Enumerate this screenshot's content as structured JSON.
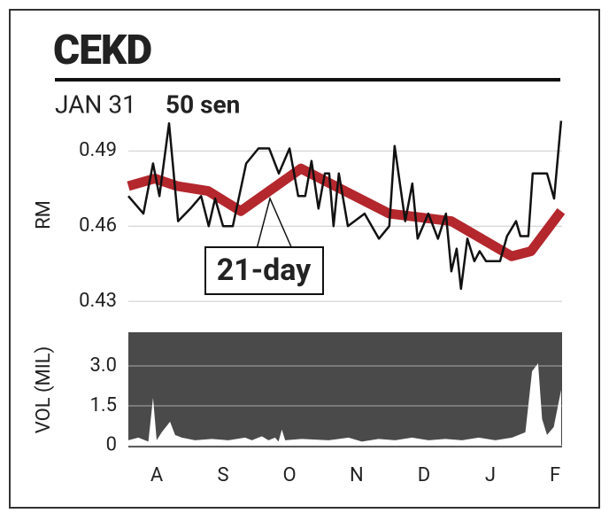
{
  "title": "CEKD",
  "date": "JAN 31",
  "price": "50 sen",
  "chart_data": [
    {
      "type": "line",
      "ylabel": "RM",
      "annotation": "21-day",
      "xlim": [
        0,
        130
      ],
      "ylim": [
        0.4265,
        0.5025
      ],
      "yticks": [
        0.43,
        0.46,
        0.49
      ],
      "grid": true,
      "series": [
        {
          "name": "21-day",
          "color": "#b3272d",
          "x": [
            0,
            7.9,
            14.6,
            23.9,
            33.7,
            51.7,
            78.2,
            96.8,
            114.9,
            120.7,
            129.7
          ],
          "values": [
            0.476,
            0.479,
            0.476,
            0.474,
            0.466,
            0.483,
            0.465,
            0.462,
            0.448,
            0.45,
            0.466
          ]
        },
        {
          "color": "#111111",
          "x": [
            0,
            4.5,
            7.4,
            9.3,
            12.2,
            14.9,
            18.6,
            21.8,
            24.1,
            26,
            28.4,
            31.3,
            35.3,
            39,
            42.2,
            45.1,
            48.3,
            50.9,
            53,
            54.9,
            57,
            58.9,
            60.2,
            61.5,
            63.1,
            65.8,
            70.8,
            75.1,
            78.2,
            79.8,
            83,
            85.1,
            86.7,
            89.9,
            92.8,
            95.2,
            96.8,
            98.4,
            99.7,
            101.6,
            103.7,
            105.3,
            107.2,
            111.4,
            113.5,
            116.2,
            117.5,
            119.9,
            121.2,
            125.5,
            127.6,
            129.7
          ],
          "values": [
            0.472,
            0.465,
            0.485,
            0.472,
            0.501,
            0.462,
            0.467,
            0.472,
            0.46,
            0.471,
            0.46,
            0.46,
            0.485,
            0.491,
            0.491,
            0.481,
            0.491,
            0.472,
            0.472,
            0.486,
            0.467,
            0.481,
            0.481,
            0.46,
            0.481,
            0.46,
            0.465,
            0.455,
            0.46,
            0.492,
            0.462,
            0.477,
            0.455,
            0.465,
            0.455,
            0.465,
            0.442,
            0.451,
            0.435,
            0.455,
            0.446,
            0.45,
            0.446,
            0.446,
            0.456,
            0.462,
            0.456,
            0.456,
            0.481,
            0.481,
            0.471,
            0.502
          ]
        }
      ]
    },
    {
      "type": "area",
      "ylabel": "VOL (MIL)",
      "color": "#ffffff",
      "background": "#4a4a4a",
      "xlim": [
        0,
        130
      ],
      "ylim": [
        -0.07,
        4.27
      ],
      "yticks": [
        0,
        {
          "value": 1.5,
          "label": "1.5"
        },
        {
          "value": 3,
          "label": "3.0"
        }
      ],
      "grid": true,
      "xticks": [
        {
          "value": 8.5,
          "label": "A"
        },
        {
          "value": 28.4,
          "label": "S"
        },
        {
          "value": 48.3,
          "label": "O"
        },
        {
          "value": 68.4,
          "label": "N"
        },
        {
          "value": 88.6,
          "label": "D"
        },
        {
          "value": 108.5,
          "label": "J"
        },
        {
          "value": 127.9,
          "label": "F"
        }
      ],
      "x": [
        0,
        3,
        6,
        7.4,
        8.5,
        10,
        12.5,
        14,
        16,
        20,
        25,
        30,
        35,
        37,
        40,
        42,
        44,
        45,
        46,
        47,
        52,
        60,
        66,
        70,
        75,
        80,
        85,
        90,
        95,
        100,
        105,
        110,
        115,
        119,
        121,
        122.8,
        124,
        125.5,
        127.5,
        129.7
      ],
      "values": [
        0.2,
        0.3,
        0.15,
        1.8,
        0.2,
        0.5,
        0.9,
        0.4,
        0.3,
        0.2,
        0.25,
        0.2,
        0.3,
        0.2,
        0.35,
        0.2,
        0.3,
        0.15,
        0.6,
        0.2,
        0.25,
        0.2,
        0.3,
        0.15,
        0.25,
        0.2,
        0.3,
        0.2,
        0.25,
        0.2,
        0.3,
        0.2,
        0.3,
        0.5,
        2.8,
        3.1,
        1.0,
        0.4,
        0.7,
        2.1
      ]
    }
  ]
}
